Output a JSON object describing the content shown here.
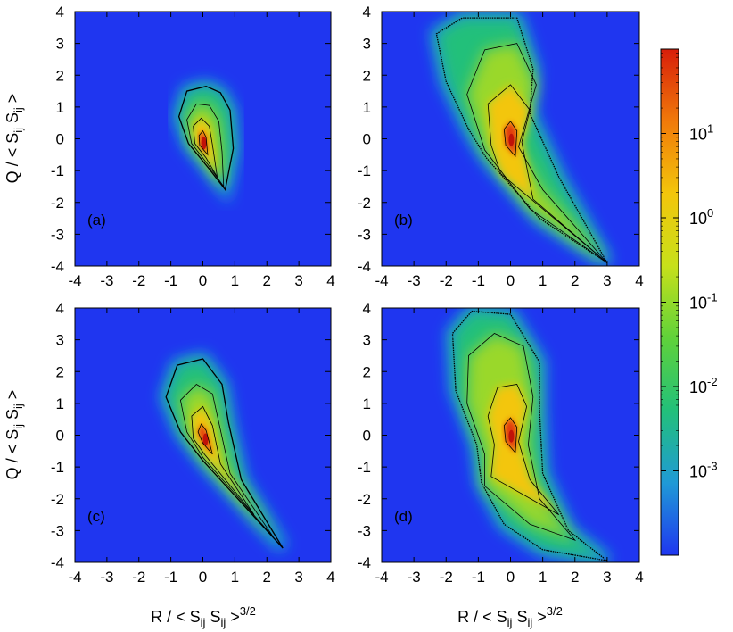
{
  "chart_data": {
    "type": "heatmap",
    "description_scale": "log",
    "colorbar": {
      "scale": "log",
      "colormap": [
        "#1f36f0",
        "#1f9ad6",
        "#22c07a",
        "#5fd23a",
        "#c7e01a",
        "#f3c60b",
        "#f07a0a",
        "#d81e0a"
      ],
      "ticks": [
        {
          "value": 10,
          "base": "10",
          "exp": "1"
        },
        {
          "value": 1,
          "base": "10",
          "exp": "0"
        },
        {
          "value": 0.1,
          "base": "10",
          "exp": "-1"
        },
        {
          "value": 0.01,
          "base": "10",
          "exp": "-2"
        },
        {
          "value": 0.001,
          "base": "10",
          "exp": "-3"
        }
      ],
      "range": [
        0.0001,
        100
      ]
    },
    "xlabel": {
      "main": "R / < S",
      "sub1": "ij",
      "mid": " S",
      "sub2": "ij",
      "close": " >",
      "sup": "3/2"
    },
    "ylabel": {
      "main": "Q / < S",
      "sub1": "ij",
      "mid": " S",
      "sub2": "ij",
      "close": " >"
    },
    "xlim": [
      -4,
      4
    ],
    "ylim": [
      -4,
      4
    ],
    "xticks": [
      "-4",
      "-3",
      "-2",
      "-1",
      "0",
      "1",
      "2",
      "3",
      "4"
    ],
    "yticks": [
      "-4",
      "-3",
      "-2",
      "-1",
      "0",
      "1",
      "2",
      "3",
      "4"
    ],
    "panels": [
      {
        "label": "(a)",
        "contours": [
          {
            "level": 1,
            "points": [
              [
                0.7,
                -1.6
              ],
              [
                0.95,
                -0.3
              ],
              [
                0.85,
                0.9
              ],
              [
                0.55,
                1.45
              ],
              [
                0.1,
                1.65
              ],
              [
                -0.5,
                1.5
              ],
              [
                -0.75,
                0.7
              ],
              [
                -0.45,
                -0.15
              ],
              [
                0.2,
                -0.95
              ],
              [
                0.7,
                -1.6
              ]
            ]
          },
          {
            "level": 2,
            "points": [
              [
                0.65,
                -1.5
              ],
              [
                0.6,
                -0.4
              ],
              [
                0.5,
                0.55
              ],
              [
                0.2,
                1.05
              ],
              [
                -0.2,
                1.1
              ],
              [
                -0.5,
                0.6
              ],
              [
                -0.35,
                -0.15
              ],
              [
                0.15,
                -0.8
              ],
              [
                0.65,
                -1.5
              ]
            ]
          },
          {
            "level": 3,
            "points": [
              [
                0.45,
                -1.2
              ],
              [
                0.3,
                -0.2
              ],
              [
                0.2,
                0.4
              ],
              [
                -0.05,
                0.65
              ],
              [
                -0.3,
                0.4
              ],
              [
                -0.25,
                -0.15
              ],
              [
                0.1,
                -0.6
              ],
              [
                0.45,
                -1.2
              ]
            ]
          },
          {
            "level": 4,
            "points": [
              [
                0.15,
                -0.5
              ],
              [
                0.1,
                0.05
              ],
              [
                0.0,
                0.25
              ],
              [
                -0.12,
                0.1
              ],
              [
                -0.1,
                -0.2
              ],
              [
                0.15,
                -0.5
              ]
            ]
          }
        ]
      },
      {
        "label": "(b)",
        "contours": [
          {
            "level": 1,
            "points": [
              [
                3.0,
                -3.9
              ],
              [
                1.5,
                -1.2
              ],
              [
                0.6,
                0.8
              ],
              [
                0.7,
                2.2
              ],
              [
                0.2,
                3.8
              ],
              [
                -1.5,
                3.8
              ],
              [
                -2.3,
                3.3
              ],
              [
                -2.0,
                1.8
              ],
              [
                -1.3,
                0.3
              ],
              [
                -0.75,
                -0.6
              ],
              [
                0.9,
                -2.5
              ],
              [
                3.0,
                -3.9
              ]
            ]
          },
          {
            "level": 2,
            "points": [
              [
                3.0,
                -3.9
              ],
              [
                1.0,
                -1.6
              ],
              [
                0.25,
                -0.25
              ],
              [
                0.8,
                1.7
              ],
              [
                0.2,
                3.0
              ],
              [
                -0.8,
                2.8
              ],
              [
                -1.35,
                1.4
              ],
              [
                -0.8,
                -0.35
              ],
              [
                0.6,
                -2.2
              ],
              [
                3.0,
                -3.9
              ]
            ]
          },
          {
            "level": 3,
            "points": [
              [
                3.0,
                -3.9
              ],
              [
                0.7,
                -1.9
              ],
              [
                0.35,
                -0.1
              ],
              [
                0.6,
                0.9
              ],
              [
                0.0,
                1.7
              ],
              [
                -0.7,
                1.1
              ],
              [
                -0.6,
                -0.2
              ],
              [
                -0.3,
                -1.1
              ],
              [
                3.0,
                -3.9
              ]
            ]
          },
          {
            "level": 4,
            "points": [
              [
                0.15,
                -0.55
              ],
              [
                0.2,
                0.25
              ],
              [
                0.0,
                0.55
              ],
              [
                -0.2,
                0.3
              ],
              [
                -0.15,
                -0.2
              ],
              [
                0.15,
                -0.55
              ]
            ]
          }
        ]
      },
      {
        "label": "(c)",
        "contours": [
          {
            "level": 1,
            "points": [
              [
                2.5,
                -3.55
              ],
              [
                1.2,
                -1.4
              ],
              [
                0.8,
                0.4
              ],
              [
                0.6,
                1.6
              ],
              [
                0.0,
                2.4
              ],
              [
                -0.8,
                2.2
              ],
              [
                -1.15,
                1.2
              ],
              [
                -0.7,
                0.1
              ],
              [
                0.0,
                -0.8
              ],
              [
                2.5,
                -3.55
              ]
            ]
          },
          {
            "level": 2,
            "points": [
              [
                2.2,
                -3.2
              ],
              [
                0.85,
                -1.2
              ],
              [
                0.5,
                0.4
              ],
              [
                0.3,
                1.3
              ],
              [
                -0.2,
                1.6
              ],
              [
                -0.7,
                1.1
              ],
              [
                -0.5,
                0.1
              ],
              [
                0.0,
                -0.7
              ],
              [
                2.2,
                -3.2
              ]
            ]
          },
          {
            "level": 3,
            "points": [
              [
                1.6,
                -2.5
              ],
              [
                0.55,
                -0.9
              ],
              [
                0.3,
                0.3
              ],
              [
                0.0,
                0.9
              ],
              [
                -0.35,
                0.6
              ],
              [
                -0.3,
                -0.1
              ],
              [
                0.05,
                -0.6
              ],
              [
                1.6,
                -2.5
              ]
            ]
          },
          {
            "level": 4,
            "points": [
              [
                0.3,
                -0.6
              ],
              [
                0.1,
                0.15
              ],
              [
                -0.05,
                0.35
              ],
              [
                -0.15,
                0.1
              ],
              [
                0.0,
                -0.25
              ],
              [
                0.3,
                -0.6
              ]
            ]
          }
        ]
      },
      {
        "label": "(d)",
        "contours": [
          {
            "level": 1,
            "points": [
              [
                3.0,
                -3.95
              ],
              [
                1.8,
                -3.0
              ],
              [
                1.0,
                -1.2
              ],
              [
                0.9,
                0.8
              ],
              [
                0.9,
                2.3
              ],
              [
                0.0,
                3.8
              ],
              [
                -1.2,
                3.9
              ],
              [
                -1.8,
                3.2
              ],
              [
                -1.7,
                1.4
              ],
              [
                -1.05,
                -0.3
              ],
              [
                -0.9,
                -1.5
              ],
              [
                -0.2,
                -2.8
              ],
              [
                1.0,
                -3.6
              ],
              [
                3.0,
                -3.95
              ]
            ]
          },
          {
            "level": 2,
            "points": [
              [
                2.0,
                -3.3
              ],
              [
                0.9,
                -2.0
              ],
              [
                0.55,
                -0.3
              ],
              [
                0.7,
                1.2
              ],
              [
                0.4,
                2.8
              ],
              [
                -0.5,
                3.2
              ],
              [
                -1.3,
                2.5
              ],
              [
                -1.35,
                1.0
              ],
              [
                -0.8,
                -0.6
              ],
              [
                -0.8,
                -1.6
              ],
              [
                0.6,
                -2.8
              ],
              [
                2.0,
                -3.3
              ]
            ]
          },
          {
            "level": 3,
            "points": [
              [
                1.5,
                -2.5
              ],
              [
                0.6,
                -1.4
              ],
              [
                0.25,
                -0.2
              ],
              [
                0.5,
                0.9
              ],
              [
                0.2,
                1.6
              ],
              [
                -0.4,
                1.5
              ],
              [
                -0.7,
                0.6
              ],
              [
                -0.5,
                -0.3
              ],
              [
                -0.6,
                -1.3
              ],
              [
                1.5,
                -2.5
              ]
            ]
          },
          {
            "level": 4,
            "points": [
              [
                0.15,
                -0.55
              ],
              [
                0.2,
                0.25
              ],
              [
                0.0,
                0.55
              ],
              [
                -0.2,
                0.3
              ],
              [
                -0.15,
                -0.2
              ],
              [
                0.15,
                -0.55
              ]
            ]
          }
        ]
      }
    ]
  }
}
